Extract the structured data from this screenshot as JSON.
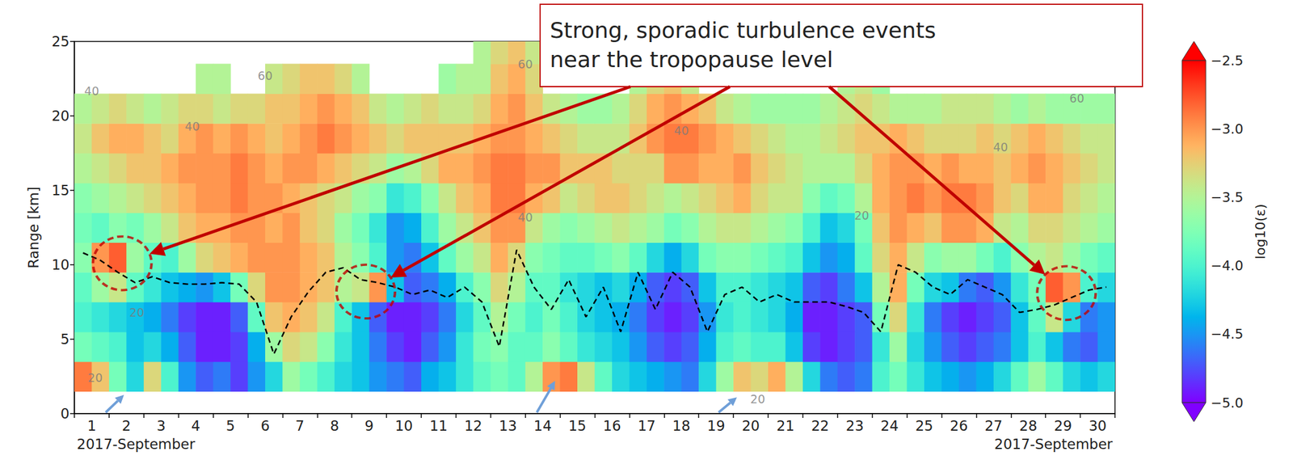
{
  "chart_data": {
    "type": "heatmap",
    "y_label": "Range [km]",
    "categories": [
      "1",
      "2",
      "3",
      "4",
      "5",
      "6",
      "7",
      "8",
      "9",
      "10",
      "11",
      "12",
      "13",
      "14",
      "15",
      "16",
      "17",
      "18",
      "19",
      "20",
      "21",
      "22",
      "23",
      "24",
      "25",
      "26",
      "27",
      "28",
      "29",
      "30"
    ],
    "x_sublabels": {
      "left": "2017-September",
      "right": "2017-September"
    },
    "xlim": [
      1,
      31
    ],
    "ylim": [
      0,
      25
    ],
    "yticks": [
      0,
      5,
      10,
      15,
      20,
      25
    ],
    "grid": false,
    "x": [
      1.25,
      1.75,
      2.25,
      2.75,
      3.25,
      3.75,
      4.25,
      4.75,
      5.25,
      5.75,
      6.25,
      6.75,
      7.25,
      7.75,
      8.25,
      8.75,
      9.25,
      9.75,
      10.25,
      10.75,
      11.25,
      11.75,
      12.25,
      12.75,
      13.25,
      13.75,
      14.25,
      14.75,
      15.25,
      15.75,
      16.25,
      16.75,
      17.25,
      17.75,
      18.25,
      18.75,
      19.25,
      19.75,
      20.25,
      20.75,
      21.25,
      21.75,
      22.25,
      22.75,
      23.25,
      23.75,
      24.25,
      24.75,
      25.25,
      25.75,
      26.25,
      26.75,
      27.25,
      27.75,
      28.25,
      28.75,
      29.25,
      29.75,
      30.25,
      30.75
    ],
    "y": [
      2.5,
      4.5,
      6.5,
      8.5,
      10.5,
      12.5,
      14.5,
      16.5,
      18.5,
      20.5,
      22.5,
      24.5
    ],
    "values": [
      [
        -2.9,
        -3.2,
        -3.8,
        -4.2,
        -3.3,
        -4.0,
        -4.5,
        -4.7,
        -4.6,
        -4.8,
        -4.5,
        -4.2,
        -3.6,
        -3.8,
        -4.0,
        -4.2,
        -4.3,
        -4.5,
        -4.6,
        -4.7,
        -4.4,
        -4.3,
        -4.1,
        -3.9,
        -3.8,
        -3.9,
        -3.5,
        -3.0,
        -2.9,
        -3.4,
        -3.9,
        -4.2,
        -4.3,
        -4.4,
        -4.5,
        -4.6,
        -4.2,
        -3.6,
        -3.2,
        -3.3,
        -3.1,
        -3.5,
        -4.2,
        -4.6,
        -4.7,
        -4.6,
        -4.0,
        -3.8,
        -4.1,
        -4.3,
        -4.4,
        -4.5,
        -4.4,
        -4.2,
        -3.9,
        -3.6,
        -3.9,
        -4.2,
        -4.3,
        -4.2
      ],
      [
        -3.8,
        -3.9,
        -4.0,
        -4.3,
        -4.2,
        -4.4,
        -4.7,
        -4.9,
        -4.9,
        -4.8,
        -4.4,
        -3.6,
        -3.3,
        -3.4,
        -3.7,
        -4.1,
        -4.3,
        -4.6,
        -4.8,
        -4.9,
        -4.7,
        -4.5,
        -4.1,
        -3.8,
        -3.7,
        -3.9,
        -3.9,
        -3.7,
        -3.9,
        -4.1,
        -4.2,
        -4.3,
        -4.5,
        -4.7,
        -4.8,
        -4.7,
        -4.4,
        -4.0,
        -3.9,
        -4.0,
        -4.0,
        -4.3,
        -4.8,
        -4.9,
        -4.8,
        -4.7,
        -4.1,
        -3.6,
        -4.2,
        -4.5,
        -4.7,
        -4.8,
        -4.7,
        -4.6,
        -4.3,
        -4.0,
        -4.3,
        -4.6,
        -4.7,
        -4.5
      ],
      [
        -4.0,
        -4.1,
        -4.2,
        -4.3,
        -4.4,
        -4.6,
        -4.8,
        -4.9,
        -4.9,
        -4.7,
        -3.9,
        -3.2,
        -3.1,
        -3.2,
        -3.4,
        -4.0,
        -4.3,
        -4.7,
        -4.9,
        -4.9,
        -4.8,
        -4.6,
        -4.2,
        -3.9,
        -3.5,
        -3.8,
        -4.0,
        -3.8,
        -4.0,
        -4.2,
        -4.3,
        -4.4,
        -4.6,
        -4.8,
        -4.9,
        -4.8,
        -4.5,
        -4.1,
        -4.0,
        -4.1,
        -4.2,
        -4.4,
        -4.9,
        -4.9,
        -4.8,
        -4.7,
        -3.8,
        -3.3,
        -4.1,
        -4.6,
        -4.8,
        -4.9,
        -4.8,
        -4.7,
        -4.3,
        -3.9,
        -3.4,
        -4.2,
        -4.6,
        -4.5
      ],
      [
        -3.9,
        -3.6,
        -3.4,
        -3.9,
        -4.1,
        -4.3,
        -4.4,
        -4.5,
        -4.3,
        -3.8,
        -3.3,
        -3.0,
        -3.0,
        -3.1,
        -3.2,
        -3.5,
        -3.4,
        -3.0,
        -4.3,
        -4.7,
        -4.6,
        -4.4,
        -4.0,
        -3.7,
        -3.3,
        -3.5,
        -3.9,
        -3.9,
        -4.1,
        -4.2,
        -4.3,
        -4.2,
        -4.4,
        -4.7,
        -4.8,
        -4.7,
        -4.3,
        -4.0,
        -4.0,
        -4.1,
        -4.2,
        -4.3,
        -4.7,
        -4.8,
        -4.6,
        -4.3,
        -3.5,
        -3.1,
        -3.8,
        -4.2,
        -4.3,
        -4.6,
        -4.7,
        -4.5,
        -4.1,
        -3.8,
        -2.8,
        -3.0,
        -4.0,
        -4.2
      ],
      [
        -3.7,
        -3.0,
        -2.8,
        -3.6,
        -3.9,
        -4.0,
        -3.6,
        -3.3,
        -3.2,
        -3.1,
        -3.0,
        -3.0,
        -3.0,
        -3.1,
        -3.2,
        -3.5,
        -3.7,
        -4.0,
        -4.5,
        -4.6,
        -4.3,
        -3.9,
        -3.6,
        -3.4,
        -3.1,
        -3.3,
        -3.7,
        -3.8,
        -3.9,
        -3.9,
        -3.8,
        -3.7,
        -3.9,
        -4.2,
        -4.4,
        -4.2,
        -3.8,
        -3.7,
        -3.7,
        -3.8,
        -3.9,
        -4.0,
        -4.3,
        -4.5,
        -4.4,
        -3.9,
        -3.3,
        -3.1,
        -3.4,
        -3.7,
        -3.6,
        -3.6,
        -3.8,
        -4.0,
        -3.7,
        -3.5,
        -3.4,
        -3.6,
        -3.8,
        -3.9
      ],
      [
        -3.8,
        -3.9,
        -3.7,
        -3.8,
        -3.6,
        -3.4,
        -3.2,
        -3.1,
        -3.1,
        -3.0,
        -3.0,
        -3.1,
        -3.0,
        -3.2,
        -3.3,
        -3.6,
        -3.8,
        -4.1,
        -4.5,
        -4.4,
        -4.0,
        -3.6,
        -3.4,
        -3.2,
        -3.0,
        -3.0,
        -3.4,
        -3.6,
        -3.7,
        -3.6,
        -3.5,
        -3.4,
        -3.5,
        -3.6,
        -3.8,
        -3.7,
        -3.5,
        -3.4,
        -3.4,
        -3.5,
        -3.6,
        -3.7,
        -4.0,
        -4.3,
        -4.2,
        -3.8,
        -3.2,
        -3.0,
        -3.1,
        -3.2,
        -3.0,
        -3.0,
        -3.1,
        -3.4,
        -3.5,
        -3.3,
        -3.3,
        -3.4,
        -3.5,
        -3.6
      ],
      [
        -3.7,
        -3.6,
        -3.5,
        -3.4,
        -3.3,
        -3.2,
        -3.1,
        -3.0,
        -3.0,
        -2.9,
        -3.0,
        -3.0,
        -3.1,
        -3.2,
        -3.3,
        -3.4,
        -3.6,
        -3.7,
        -4.1,
        -4.0,
        -3.7,
        -3.4,
        -3.2,
        -3.1,
        -2.9,
        -2.9,
        -3.1,
        -3.2,
        -3.4,
        -3.3,
        -3.2,
        -3.2,
        -3.3,
        -3.4,
        -3.5,
        -3.4,
        -3.3,
        -3.2,
        -3.1,
        -3.3,
        -3.4,
        -3.4,
        -3.7,
        -3.9,
        -3.8,
        -3.5,
        -3.1,
        -3.0,
        -2.9,
        -3.0,
        -2.9,
        -2.9,
        -3.0,
        -3.2,
        -3.3,
        -3.1,
        -3.1,
        -3.3,
        -3.4,
        -3.5
      ],
      [
        -3.5,
        -3.4,
        -3.3,
        -3.2,
        -3.2,
        -3.1,
        -3.0,
        -3.0,
        -3.0,
        -2.9,
        -3.0,
        -3.1,
        -3.0,
        -3.0,
        -3.1,
        -3.2,
        -3.3,
        -3.4,
        -3.6,
        -3.5,
        -3.3,
        -3.1,
        -3.1,
        -3.0,
        -2.9,
        -2.9,
        -3.0,
        -3.0,
        -3.2,
        -3.2,
        -3.2,
        -3.3,
        -3.3,
        -3.3,
        -3.0,
        -3.0,
        -3.1,
        -3.1,
        -3.0,
        -3.2,
        -3.3,
        -3.4,
        -3.5,
        -3.5,
        -3.5,
        -3.3,
        -3.1,
        -3.0,
        -3.0,
        -3.1,
        -3.0,
        -3.1,
        -3.1,
        -3.2,
        -3.1,
        -3.0,
        -3.1,
        -3.2,
        -3.3,
        -3.4
      ],
      [
        -3.4,
        -3.2,
        -3.1,
        -3.1,
        -3.2,
        -3.3,
        -3.1,
        -3.0,
        -3.1,
        -3.0,
        -3.1,
        -3.2,
        -3.1,
        -3.0,
        -2.9,
        -3.0,
        -3.1,
        -3.2,
        -3.3,
        -3.2,
        -3.2,
        -3.2,
        -3.2,
        -3.1,
        -3.0,
        -3.0,
        -3.1,
        -3.2,
        -3.3,
        -3.4,
        -3.4,
        -3.4,
        -3.2,
        -3.0,
        -2.9,
        -2.9,
        -3.0,
        -3.1,
        -3.2,
        -3.3,
        -3.4,
        -3.5,
        -3.5,
        -3.4,
        -3.3,
        -3.2,
        -3.2,
        -3.1,
        -3.2,
        -3.3,
        -3.3,
        -3.3,
        -3.2,
        -3.3,
        -3.2,
        -3.1,
        -3.2,
        -3.3,
        -3.4,
        -3.4
      ],
      [
        -3.5,
        -3.4,
        -3.3,
        -3.4,
        -3.5,
        -3.4,
        -3.3,
        -3.3,
        -3.4,
        -3.3,
        -3.3,
        -3.2,
        -3.2,
        -3.1,
        -3.0,
        -3.1,
        -3.2,
        -3.4,
        -3.5,
        -3.4,
        -3.3,
        -3.4,
        -3.4,
        -3.3,
        -3.1,
        -3.0,
        -3.2,
        -3.4,
        -3.5,
        -3.6,
        -3.6,
        -3.5,
        -3.3,
        -3.1,
        -3.0,
        -3.1,
        -3.2,
        -3.4,
        -3.5,
        -3.6,
        -3.6,
        -3.6,
        -3.6,
        -3.5,
        -3.4,
        -3.3,
        -3.4,
        -3.5,
        -3.5,
        -3.5,
        -3.4,
        -3.4,
        -3.4,
        -3.5,
        -3.6,
        -3.5,
        -3.6,
        -3.6,
        -3.6,
        -3.6
      ],
      [
        null,
        null,
        null,
        null,
        null,
        null,
        null,
        -3.5,
        -3.5,
        null,
        null,
        -3.4,
        -3.3,
        -3.2,
        -3.2,
        -3.3,
        -3.5,
        null,
        null,
        null,
        null,
        -3.6,
        -3.5,
        -3.5,
        -3.2,
        -3.1,
        -3.3,
        null,
        null,
        null,
        null,
        null,
        -3.5,
        -3.3,
        -3.2,
        -3.4,
        null,
        null,
        null,
        null,
        null,
        null,
        null,
        null,
        -3.5,
        -3.4,
        -3.6,
        null,
        null,
        null,
        null,
        null,
        null,
        null,
        null,
        null,
        null,
        null,
        null,
        null
      ],
      [
        null,
        null,
        null,
        null,
        null,
        null,
        null,
        null,
        null,
        null,
        null,
        null,
        null,
        null,
        null,
        null,
        null,
        null,
        null,
        null,
        null,
        null,
        null,
        -3.5,
        -3.3,
        -3.2,
        -3.4,
        null,
        null,
        null,
        null,
        null,
        null,
        null,
        null,
        null,
        null,
        null,
        null,
        null,
        null,
        null,
        null,
        null,
        null,
        null,
        null,
        null,
        null,
        null,
        null,
        null,
        null,
        null,
        null,
        null,
        null,
        null,
        null,
        null
      ]
    ],
    "colorbar": {
      "label": "log10(ε)",
      "range": [
        -5,
        -2.5
      ],
      "ticks": [
        {
          "value": -5,
          "label": "−5.0"
        },
        {
          "value": -4.5,
          "label": "−4.5"
        },
        {
          "value": -4,
          "label": "−4.0"
        },
        {
          "value": -3.5,
          "label": "−3.5"
        },
        {
          "value": -3,
          "label": "−3.0"
        },
        {
          "value": -2.5,
          "label": "−2.5"
        }
      ]
    },
    "series": [
      {
        "type": "line",
        "color": "#000000",
        "line_style": "dashed",
        "values": [
          10.8,
          10.3,
          9.5,
          8.8,
          9.2,
          8.8,
          8.7,
          8.7,
          8.8,
          8.7,
          7.5,
          4.0,
          6.5,
          8.2,
          9.5,
          9.8,
          9.0,
          8.8,
          8.5,
          8.0,
          8.3,
          7.8,
          8.5,
          7.5,
          4.5,
          11.0,
          8.5,
          7.0,
          9.0,
          6.5,
          8.5,
          5.5,
          9.5,
          7.0,
          9.5,
          8.5,
          5.5,
          8.0,
          8.5,
          7.5,
          8.0,
          7.5,
          7.5,
          7.5,
          7.2,
          6.8,
          5.5,
          10.0,
          9.5,
          8.5,
          8.0,
          9.0,
          8.5,
          8.0,
          6.8,
          7.0,
          7.3,
          7.8,
          8.3,
          8.5
        ]
      }
    ],
    "contour_color": "#7a7a7a",
    "contour_labels": [
      {
        "x": 1.5,
        "y": 21.7,
        "label": "40"
      },
      {
        "x": 6.5,
        "y": 22.7,
        "label": "60"
      },
      {
        "x": 4.4,
        "y": 19.3,
        "label": "40"
      },
      {
        "x": 2.8,
        "y": 6.8,
        "label": "20"
      },
      {
        "x": 1.6,
        "y": 2.4,
        "label": "20"
      },
      {
        "x": 14.0,
        "y": 13.2,
        "label": "40"
      },
      {
        "x": 14.0,
        "y": 23.5,
        "label": "60"
      },
      {
        "x": 18.5,
        "y": 19.0,
        "label": "40"
      },
      {
        "x": 23.7,
        "y": 13.3,
        "label": "20"
      },
      {
        "x": 27.7,
        "y": 17.9,
        "label": "40"
      },
      {
        "x": 29.9,
        "y": 21.2,
        "label": "60"
      },
      {
        "x": 20.7,
        "y": 1.0,
        "label": "20"
      }
    ],
    "annotations": [
      {
        "text": "Strong, sporadic turbulence events near the tropopause level",
        "color": "#c00000",
        "targets": [
          {
            "x": 2.38,
            "y": 10.1
          },
          {
            "x": 9.4,
            "y": 8.2
          },
          {
            "x": 29.6,
            "y": 8.1
          }
        ]
      }
    ],
    "arrows": {
      "color": "#6f9fd8",
      "targets": [
        {
          "x": 2.43,
          "y": 1.26
        },
        {
          "x": 14.86,
          "y": 2.2
        },
        {
          "x": 20.1,
          "y": 1.1
        }
      ]
    }
  }
}
